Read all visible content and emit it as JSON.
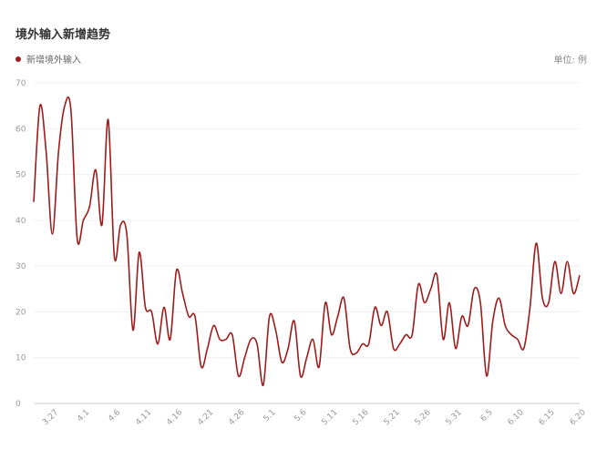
{
  "title": "境外输入新增趋势",
  "unit_label": "单位: 例",
  "chart_data": {
    "type": "line",
    "title": "境外输入新增趋势",
    "xlabel": "",
    "ylabel": "",
    "ylim": [
      0,
      70
    ],
    "y_ticks": [
      0,
      10,
      20,
      30,
      40,
      50,
      60,
      70
    ],
    "x_tick_labels": [
      "3.27",
      "4.1",
      "4.6",
      "4.11",
      "4.16",
      "4.21",
      "4.26",
      "5.1",
      "5.6",
      "5.11",
      "5.16",
      "5.21",
      "5.26",
      "5.31",
      "6.5",
      "6.10",
      "6.15",
      "6.20"
    ],
    "x_tick_index": [
      4,
      9,
      14,
      19,
      24,
      29,
      34,
      39,
      44,
      49,
      54,
      59,
      64,
      69,
      74,
      79,
      84,
      89
    ],
    "series": [
      {
        "name": "新增境外输入",
        "color": "#9e1b1b",
        "values": [
          44,
          65,
          55,
          37,
          55,
          65,
          64,
          36,
          40,
          43,
          51,
          39,
          62,
          32,
          39,
          37,
          16,
          33,
          21,
          20,
          13,
          21,
          14,
          29,
          24,
          19,
          19,
          8,
          12,
          17,
          14,
          14,
          15,
          6,
          10,
          14,
          13,
          4,
          19,
          16,
          9,
          12,
          18,
          6,
          10,
          14,
          8,
          22,
          15,
          19,
          23,
          12,
          11,
          13,
          13,
          21,
          17,
          20,
          12,
          13,
          15,
          15,
          26,
          22,
          25,
          28,
          14,
          22,
          12,
          19,
          17,
          25,
          22,
          6,
          18,
          23,
          17,
          15,
          14,
          12,
          21,
          35,
          23,
          22,
          31,
          24,
          31,
          24,
          28
        ]
      }
    ]
  }
}
